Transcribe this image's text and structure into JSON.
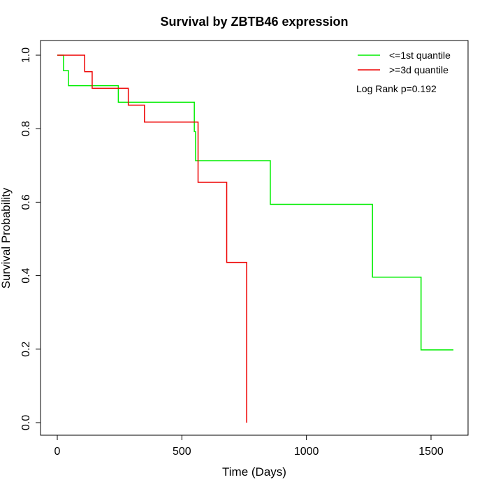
{
  "chart_data": {
    "type": "line",
    "subtype": "step",
    "title": "Survival by ZBTB46 expression",
    "xlabel": "Time (Days)",
    "ylabel": "Survival Probability",
    "xlim": [
      0,
      1600
    ],
    "ylim": [
      0,
      1.0
    ],
    "x_ticks": [
      0,
      500,
      1000,
      1500
    ],
    "x_tick_labels": [
      "0",
      "500",
      "1000",
      "1500"
    ],
    "y_ticks": [
      0.0,
      0.2,
      0.4,
      0.6,
      0.8,
      1.0
    ],
    "y_tick_labels": [
      "0.0",
      "0.2",
      "0.4",
      "0.6",
      "0.8",
      "1.0"
    ],
    "grid": false,
    "legend_position": "top-right",
    "annotation": "Log Rank p=0.192",
    "series": [
      {
        "name": "<=1st quantile",
        "color": "#00ee00",
        "points": [
          [
            0,
            1.0
          ],
          [
            25,
            0.958
          ],
          [
            45,
            0.917
          ],
          [
            245,
            0.872
          ],
          [
            550,
            0.792
          ],
          [
            555,
            0.713
          ],
          [
            855,
            0.594
          ],
          [
            1265,
            0.396
          ],
          [
            1460,
            0.198
          ],
          [
            1590,
            0.198
          ]
        ]
      },
      {
        "name": ">=3d quantile",
        "color": "#ee0000",
        "points": [
          [
            0,
            1.0
          ],
          [
            110,
            0.955
          ],
          [
            140,
            0.91
          ],
          [
            285,
            0.864
          ],
          [
            350,
            0.818
          ],
          [
            565,
            0.654
          ],
          [
            680,
            0.436
          ],
          [
            760,
            0.0
          ]
        ]
      }
    ]
  }
}
